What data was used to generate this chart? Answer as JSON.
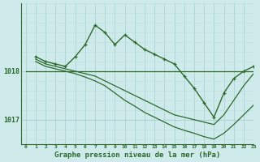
{
  "title": "Graphe pression niveau de la mer (hPa)",
  "bg_color": "#ceeaea",
  "grid_major_color": "#aad4d4",
  "grid_minor_color": "#bbdddd",
  "line_color": "#2d6a2d",
  "xlim": [
    -0.5,
    23
  ],
  "ylim": [
    1016.5,
    1019.4
  ],
  "yticks": [
    1017.0,
    1018.0
  ],
  "xticks": [
    0,
    1,
    2,
    3,
    4,
    5,
    6,
    7,
    8,
    9,
    10,
    11,
    12,
    13,
    14,
    15,
    16,
    17,
    18,
    19,
    20,
    21,
    22,
    23
  ],
  "series": [
    {
      "x": [
        0,
        23
      ],
      "y": [
        1018.0,
        1018.0
      ],
      "marker": false,
      "lw": 0.9
    },
    {
      "x": [
        1,
        2,
        3,
        4,
        5,
        6,
        7,
        8,
        9,
        10,
        11,
        12,
        13,
        14,
        15,
        16,
        17,
        18,
        19,
        20,
        21,
        22,
        23
      ],
      "y": [
        1018.3,
        1018.2,
        1018.15,
        1018.1,
        1018.3,
        1018.55,
        1018.95,
        1018.8,
        1018.55,
        1018.75,
        1018.6,
        1018.45,
        1018.35,
        1018.25,
        1018.15,
        1017.9,
        1017.65,
        1017.35,
        1017.05,
        1017.55,
        1017.85,
        1018.0,
        1018.1
      ],
      "marker": true,
      "lw": 1.0
    },
    {
      "x": [
        1,
        2,
        3,
        4,
        5,
        6,
        7,
        8,
        9,
        10,
        11,
        12,
        13,
        14,
        15,
        16,
        17,
        18,
        19,
        20,
        21,
        22,
        23
      ],
      "y": [
        1018.25,
        1018.15,
        1018.1,
        1018.05,
        1018.0,
        1017.95,
        1017.9,
        1017.8,
        1017.7,
        1017.6,
        1017.5,
        1017.4,
        1017.3,
        1017.2,
        1017.1,
        1017.05,
        1017.0,
        1016.95,
        1016.9,
        1017.1,
        1017.4,
        1017.7,
        1017.95
      ],
      "marker": false,
      "lw": 0.9
    },
    {
      "x": [
        1,
        2,
        3,
        4,
        5,
        6,
        7,
        8,
        9,
        10,
        11,
        12,
        13,
        14,
        15,
        16,
        17,
        18,
        19,
        20,
        21,
        22,
        23
      ],
      "y": [
        1018.2,
        1018.1,
        1018.05,
        1018.0,
        1017.95,
        1017.88,
        1017.8,
        1017.7,
        1017.55,
        1017.4,
        1017.28,
        1017.15,
        1017.05,
        1016.95,
        1016.85,
        1016.78,
        1016.72,
        1016.65,
        1016.6,
        1016.72,
        1016.9,
        1017.1,
        1017.3
      ],
      "marker": false,
      "lw": 0.9
    }
  ]
}
